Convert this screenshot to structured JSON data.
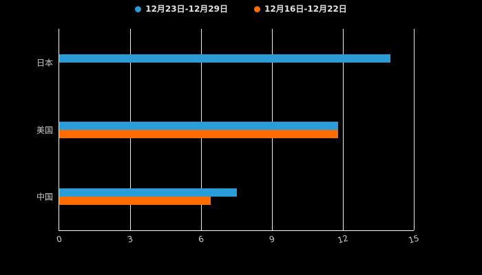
{
  "chart_data": {
    "type": "bar",
    "orientation": "horizontal",
    "title": "",
    "xlabel": "",
    "ylabel": "",
    "categories": [
      "日本",
      "美国",
      "中国"
    ],
    "series": [
      {
        "name": "12月23日-12月29日",
        "color": "#2B9CD8",
        "values": [
          14,
          11.8,
          7.5
        ]
      },
      {
        "name": "12月16日-12月22日",
        "color": "#FF6D00",
        "values": [
          0,
          11.8,
          6.4
        ]
      }
    ],
    "xlim": [
      0,
      15
    ],
    "xticks": [
      0,
      3,
      6,
      9,
      12,
      15
    ],
    "grid": true,
    "legend_position": "top",
    "colors": {
      "background": "#000000",
      "axis": "#ffffff",
      "gridline": "#ededed",
      "text": "#cccccc"
    }
  }
}
